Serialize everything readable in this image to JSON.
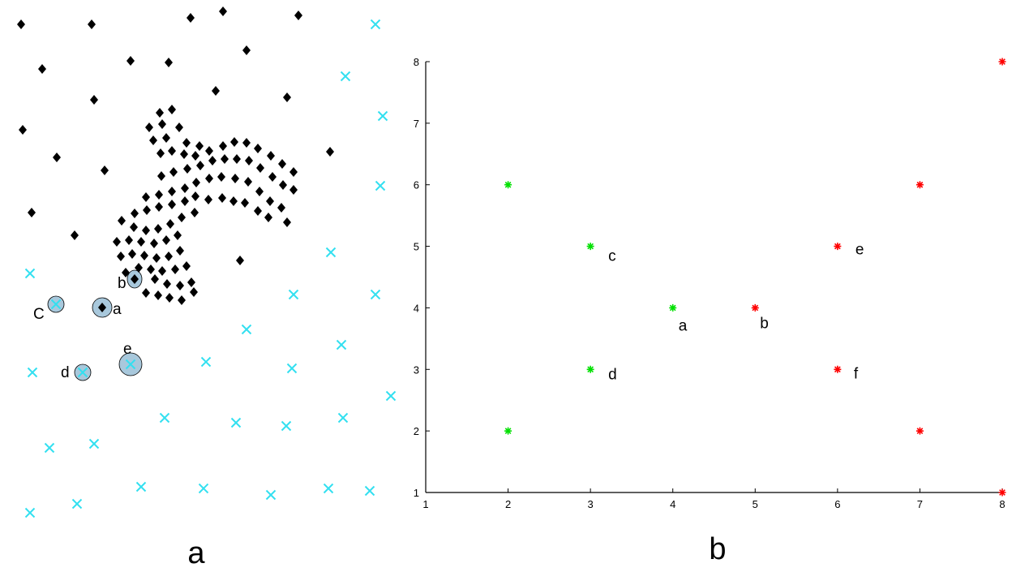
{
  "panel_labels": {
    "a": "a",
    "b": "b"
  },
  "colors": {
    "black_marker": "#000000",
    "cyan_marker": "#33e0f0",
    "green_marker": "#00e000",
    "red_marker": "#ff0000",
    "highlight_circle": "#a8c8dc"
  },
  "chart_data": [
    {
      "panel": "a",
      "type": "scatter",
      "title": "",
      "xlabel": "",
      "ylabel": "",
      "axes_visible": false,
      "series": [
        {
          "marker": "diamond",
          "color": "#000000",
          "points": [
            [
              26,
              30
            ],
            [
              113,
              30
            ],
            [
              235,
              22
            ],
            [
              275,
              14
            ],
            [
              368,
              19
            ],
            [
              52,
              85
            ],
            [
              161,
              75
            ],
            [
              208,
              77
            ],
            [
              304,
              62
            ],
            [
              116,
              123
            ],
            [
              266,
              112
            ],
            [
              354,
              120
            ],
            [
              28,
              160
            ],
            [
              70,
              194
            ],
            [
              129,
              210
            ],
            [
              407,
              187
            ],
            [
              39,
              262
            ],
            [
              92,
              290
            ],
            [
              296,
              321
            ],
            [
              197,
              139
            ],
            [
              212,
              135
            ],
            [
              184,
              157
            ],
            [
              200,
              153
            ],
            [
              221,
              157
            ],
            [
              189,
              173
            ],
            [
              205,
              170
            ],
            [
              230,
              176
            ],
            [
              246,
              180
            ],
            [
              198,
              189
            ],
            [
              212,
              186
            ],
            [
              227,
              190
            ],
            [
              241,
              192
            ],
            [
              258,
              186
            ],
            [
              275,
              180
            ],
            [
              289,
              175
            ],
            [
              304,
              176
            ],
            [
              318,
              183
            ],
            [
              334,
              192
            ],
            [
              348,
              202
            ],
            [
              362,
              212
            ],
            [
              199,
              217
            ],
            [
              214,
              212
            ],
            [
              231,
              208
            ],
            [
              247,
              204
            ],
            [
              262,
              198
            ],
            [
              277,
              196
            ],
            [
              292,
              196
            ],
            [
              307,
              198
            ],
            [
              321,
              207
            ],
            [
              336,
              218
            ],
            [
              349,
              228
            ],
            [
              362,
              234
            ],
            [
              180,
              243
            ],
            [
              196,
              240
            ],
            [
              212,
              236
            ],
            [
              228,
              232
            ],
            [
              242,
              225
            ],
            [
              258,
              220
            ],
            [
              273,
              218
            ],
            [
              290,
              220
            ],
            [
              306,
              224
            ],
            [
              320,
              236
            ],
            [
              333,
              248
            ],
            [
              347,
              256
            ],
            [
              166,
              263
            ],
            [
              181,
              259
            ],
            [
              196,
              255
            ],
            [
              212,
              252
            ],
            [
              228,
              248
            ],
            [
              241,
              242
            ],
            [
              257,
              246
            ],
            [
              274,
              244
            ],
            [
              288,
              248
            ],
            [
              302,
              250
            ],
            [
              318,
              260
            ],
            [
              331,
              268
            ],
            [
              354,
              274
            ],
            [
              150,
              272
            ],
            [
              165,
              280
            ],
            [
              180,
              284
            ],
            [
              195,
              282
            ],
            [
              210,
              276
            ],
            [
              224,
              268
            ],
            [
              240,
              262
            ],
            [
              144,
              298
            ],
            [
              159,
              296
            ],
            [
              174,
              298
            ],
            [
              190,
              300
            ],
            [
              205,
              296
            ],
            [
              219,
              290
            ],
            [
              149,
              316
            ],
            [
              163,
              313
            ],
            [
              178,
              315
            ],
            [
              193,
              318
            ],
            [
              208,
              316
            ],
            [
              222,
              309
            ],
            [
              155,
              336
            ],
            [
              171,
              330
            ],
            [
              186,
              332
            ],
            [
              200,
              334
            ],
            [
              216,
              332
            ],
            [
              230,
              328
            ],
            [
              180,
              361
            ],
            [
              195,
              364
            ],
            [
              209,
              367
            ],
            [
              224,
              370
            ],
            [
              239,
              360
            ],
            [
              191,
              344
            ],
            [
              206,
              350
            ],
            [
              222,
              352
            ],
            [
              236,
              348
            ],
            [
              166,
              344
            ],
            [
              126,
              379
            ]
          ]
        },
        {
          "marker": "x",
          "color": "#33e0f0",
          "points": [
            [
              463,
              30
            ],
            [
              426,
              94
            ],
            [
              472,
              143
            ],
            [
              469,
              229
            ],
            [
              408,
              311
            ],
            [
              37,
              337
            ],
            [
              362,
              363
            ],
            [
              463,
              363
            ],
            [
              69,
              375
            ],
            [
              304,
              406
            ],
            [
              421,
              425
            ],
            [
              40,
              459
            ],
            [
              102,
              459
            ],
            [
              161,
              449
            ],
            [
              254,
              446
            ],
            [
              360,
              454
            ],
            [
              482,
              488
            ],
            [
              203,
              515
            ],
            [
              291,
              521
            ],
            [
              353,
              525
            ],
            [
              423,
              515
            ],
            [
              61,
              552
            ],
            [
              116,
              547
            ],
            [
              174,
              600
            ],
            [
              251,
              602
            ],
            [
              334,
              610
            ],
            [
              405,
              602
            ],
            [
              456,
              605
            ],
            [
              37,
              632
            ],
            [
              95,
              621
            ]
          ]
        }
      ],
      "highlighted": [
        {
          "label": "a",
          "center": [
            126,
            379
          ]
        },
        {
          "label": "b",
          "center": [
            166,
            344
          ]
        },
        {
          "label": "C",
          "center": [
            69,
            375
          ]
        },
        {
          "label": "d",
          "center": [
            102,
            459
          ]
        },
        {
          "label": "e",
          "center": [
            161,
            449
          ]
        }
      ]
    },
    {
      "panel": "b",
      "type": "scatter",
      "title": "",
      "xlabel": "",
      "ylabel": "",
      "xlim": [
        1,
        8
      ],
      "ylim": [
        1,
        8
      ],
      "xticks": [
        "1",
        "2",
        "3",
        "4",
        "5",
        "6",
        "7",
        "8"
      ],
      "yticks": [
        "1",
        "2",
        "3",
        "4",
        "5",
        "6",
        "7",
        "8"
      ],
      "grid": false,
      "series": [
        {
          "marker": "asterisk",
          "color": "#00e000",
          "points": [
            {
              "x": 2,
              "y": 6,
              "label": ""
            },
            {
              "x": 3,
              "y": 5,
              "label": "c"
            },
            {
              "x": 4,
              "y": 4,
              "label": "a"
            },
            {
              "x": 3,
              "y": 3,
              "label": "d"
            },
            {
              "x": 2,
              "y": 2,
              "label": ""
            }
          ]
        },
        {
          "marker": "asterisk",
          "color": "#ff0000",
          "points": [
            {
              "x": 8,
              "y": 8,
              "label": ""
            },
            {
              "x": 7,
              "y": 6,
              "label": ""
            },
            {
              "x": 6,
              "y": 5,
              "label": "e"
            },
            {
              "x": 5,
              "y": 4,
              "label": "b"
            },
            {
              "x": 6,
              "y": 3,
              "label": "f"
            },
            {
              "x": 7,
              "y": 2,
              "label": ""
            },
            {
              "x": 8,
              "y": 1,
              "label": ""
            }
          ]
        }
      ]
    }
  ]
}
